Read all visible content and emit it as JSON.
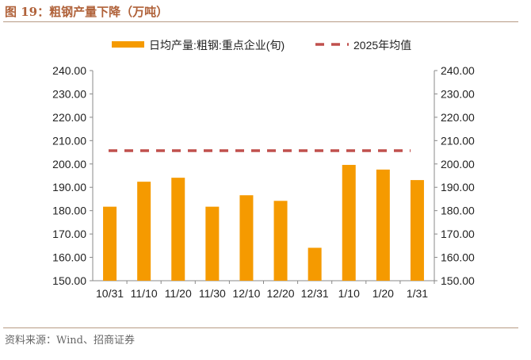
{
  "header": {
    "title": "图 19：粗钢产量下降（万吨）"
  },
  "footer": {
    "source": "资料来源：Wind、招商证券"
  },
  "chart_data": {
    "type": "bar",
    "title": "图 19：粗钢产量下降（万吨）",
    "categories": [
      "10/31",
      "11/10",
      "11/20",
      "11/30",
      "12/10",
      "12/20",
      "12/31",
      "1/10",
      "1/20",
      "1/31"
    ],
    "series": [
      {
        "name": "日均产量:粗钢:重点企业(旬)",
        "type": "bar",
        "color": "#f59a00",
        "values": [
          181.7,
          192.4,
          194.1,
          181.7,
          186.6,
          184.2,
          164.1,
          199.6,
          197.6,
          193.1
        ]
      },
      {
        "name": "2025年均值",
        "type": "line-dashed",
        "color": "#c0504d",
        "value": 205.7
      }
    ],
    "ylim": [
      150,
      240
    ],
    "yticks": [
      "150.00",
      "160.00",
      "170.00",
      "180.00",
      "190.00",
      "200.00",
      "210.00",
      "220.00",
      "230.00",
      "240.00"
    ],
    "legend": "top",
    "grid": false
  }
}
